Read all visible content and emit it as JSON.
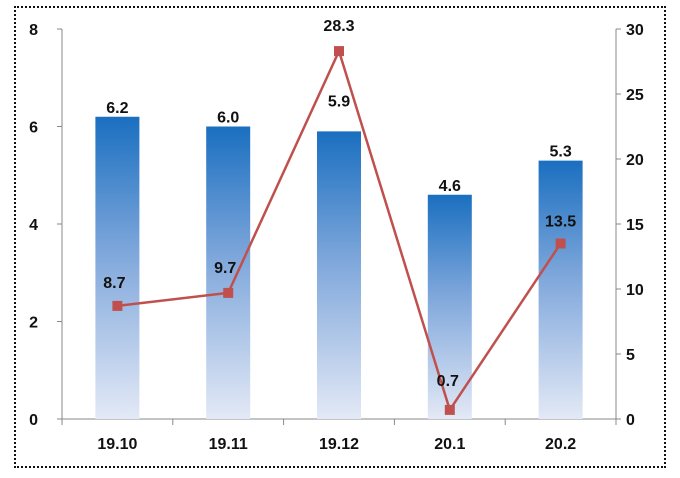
{
  "chart_data": {
    "type": "bar",
    "categories": [
      "19.10",
      "19.11",
      "19.12",
      "20.1",
      "20.2"
    ],
    "series": [
      {
        "type": "bar",
        "axis": "left",
        "values": [
          6.2,
          6.0,
          5.9,
          4.6,
          5.3
        ],
        "labels": [
          "6.2",
          "6.0",
          "5.9",
          "4.6",
          "5.3"
        ]
      },
      {
        "type": "line",
        "axis": "right",
        "values": [
          8.7,
          9.7,
          28.3,
          0.7,
          13.5
        ],
        "labels": [
          "8.7",
          "9.7",
          "28.3",
          "0.7",
          "13.5"
        ]
      }
    ],
    "left_axis": {
      "ylim": [
        0,
        8
      ],
      "ticks": [
        "0",
        "2",
        "4",
        "6",
        "8"
      ]
    },
    "right_axis": {
      "ylim": [
        0,
        30
      ],
      "ticks": [
        "0",
        "5",
        "10",
        "15",
        "20",
        "25",
        "30"
      ]
    },
    "grid": false,
    "title": "",
    "xlabel": "",
    "ylabel": ""
  },
  "colors": {
    "bar_top": "#1a6fc0",
    "bar_bottom": "#e3e9f6",
    "line": "#c0504d",
    "axis": "#888888",
    "frame": "#111111"
  }
}
